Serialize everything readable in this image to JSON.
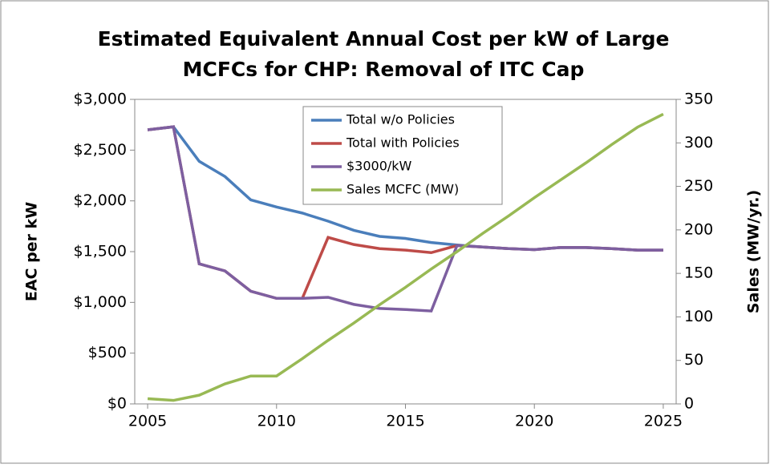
{
  "chart_data": {
    "type": "line",
    "title": [
      "Estimated Equivalent Annual Cost per kW of Large",
      "MCFCs for CHP: Removal of ITC Cap"
    ],
    "y_label": "EAC per kW",
    "y2_label": "Sales (MW/yr.)",
    "x": [
      2005,
      2006,
      2007,
      2008,
      2009,
      2010,
      2011,
      2012,
      2013,
      2014,
      2015,
      2016,
      2017,
      2018,
      2019,
      2020,
      2021,
      2022,
      2023,
      2024,
      2025
    ],
    "xlim": [
      2004.5,
      2025.5
    ],
    "xticks": [
      2005,
      2010,
      2015,
      2020,
      2025
    ],
    "ylim": [
      0,
      3000
    ],
    "yticks": [
      {
        "value": 0,
        "label": "$0"
      },
      {
        "value": 500,
        "label": "$500"
      },
      {
        "value": 1000,
        "label": "$1,000"
      },
      {
        "value": 1500,
        "label": "$1,500"
      },
      {
        "value": 2000,
        "label": "$2,000"
      },
      {
        "value": 2500,
        "label": "$2,500"
      },
      {
        "value": 3000,
        "label": "$3,000"
      }
    ],
    "y2lim": [
      0,
      350
    ],
    "y2ticks": [
      0,
      50,
      100,
      150,
      200,
      250,
      300,
      350
    ],
    "grid": false,
    "legend": "top-center",
    "series": [
      {
        "name": "Total w/o Policies",
        "color": "#4a7ebb",
        "values": [
          2700,
          2730,
          2390,
          2240,
          2010,
          1940,
          1880,
          1800,
          1710,
          1650,
          1630,
          1590,
          1565,
          1545,
          1530,
          1520,
          1540,
          1540,
          1530,
          1515,
          1515
        ]
      },
      {
        "name": "Total with Policies",
        "color": "#be4b48",
        "values": [
          2700,
          2730,
          1380,
          1310,
          1110,
          1040,
          1040,
          1640,
          1570,
          1530,
          1515,
          1490,
          1560,
          1545,
          1530,
          1520,
          1540,
          1540,
          1530,
          1515,
          1515
        ]
      },
      {
        "name": "$3000/kW",
        "color": "#7d5fa0",
        "values": [
          2700,
          2730,
          1380,
          1310,
          1110,
          1040,
          1040,
          1050,
          980,
          940,
          930,
          915,
          1560,
          1545,
          1530,
          1520,
          1540,
          1540,
          1530,
          1515,
          1515
        ]
      },
      {
        "name": "Sales MCFC (MW)",
        "color": "#98b954",
        "axis": "y2",
        "values": [
          6,
          4,
          10,
          23,
          32,
          32,
          52,
          73,
          93,
          114,
          134,
          155,
          175,
          196,
          216,
          237,
          257,
          277,
          298,
          318,
          333
        ]
      }
    ]
  }
}
